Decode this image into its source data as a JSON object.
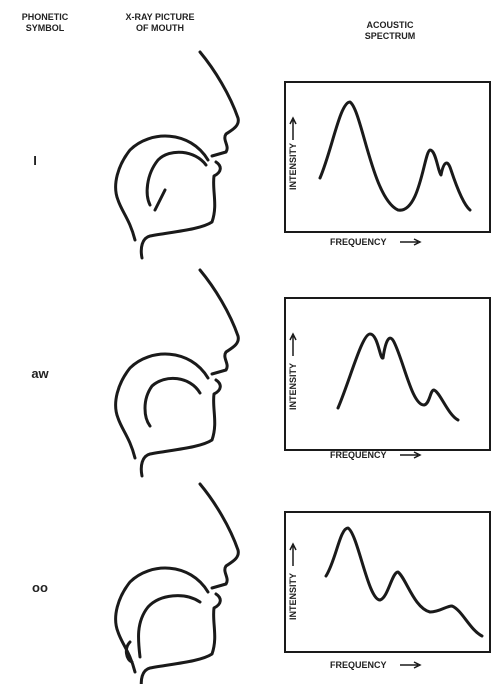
{
  "headers": {
    "symbol": [
      "PHONETIC",
      "SYMBOL"
    ],
    "xray": [
      "X-RAY PICTURE",
      "OF MOUTH"
    ],
    "spectrum": [
      "ACOUSTIC",
      "SPECTRUM"
    ]
  },
  "rows": [
    {
      "symbol": "I",
      "y_label": "INTENSITY",
      "x_label": "FREQUENCY"
    },
    {
      "symbol": "aw",
      "y_label": "INTENSITY",
      "x_label": "FREQUENCY"
    },
    {
      "symbol": "oo",
      "y_label": "INTENSITY",
      "x_label": "FREQUENCY"
    }
  ]
}
